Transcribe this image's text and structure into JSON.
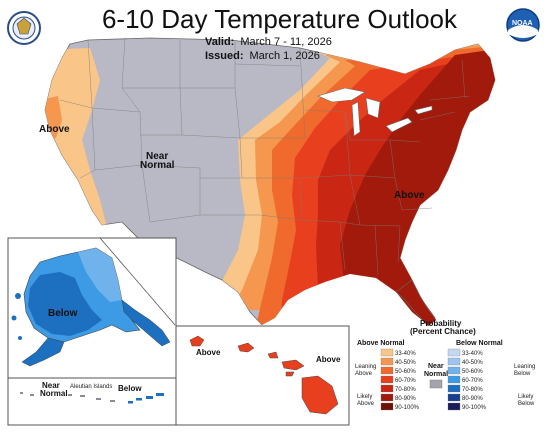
{
  "header": {
    "title": "6-10 Day Temperature Outlook",
    "valid_label": "Valid:",
    "valid_value": "March 7 - 11, 2026",
    "issued_label": "Issued:",
    "issued_value": "March 1, 2026"
  },
  "logos": {
    "left": "commerce-seal-icon",
    "right": "noaa-logo-icon"
  },
  "map_labels": {
    "west_above": "Above",
    "near_normal_line1": "Near",
    "near_normal_line2": "Normal",
    "east_above": "Above",
    "alaska_below": "Below",
    "aleutian_near_line1": "Near",
    "aleutian_near_line2": "Normal",
    "aleutian_islands": "Aleutian Islands",
    "aleutian_below": "Below",
    "hawaii_above_west": "Above",
    "hawaii_above_east": "Above"
  },
  "legend": {
    "title_line1": "Probability",
    "title_line2": "(Percent Chance)",
    "above_heading": "Above Normal",
    "below_heading": "Below Normal",
    "near_line1": "Near",
    "near_line2": "Normal",
    "leaning_above_line1": "Leaning",
    "leaning_above_line2": "Above",
    "likely_above_line1": "Likely",
    "likely_above_line2": "Above",
    "leaning_below_line1": "Leaning",
    "leaning_below_line2": "Below",
    "likely_below_line1": "Likely",
    "likely_below_line2": "Below",
    "above_bins": [
      {
        "label": "33-40%",
        "color": "#f9c589"
      },
      {
        "label": "40-50%",
        "color": "#f5974e"
      },
      {
        "label": "50-60%",
        "color": "#f06a2d"
      },
      {
        "label": "60-70%",
        "color": "#e8401e"
      },
      {
        "label": "70-80%",
        "color": "#c92713"
      },
      {
        "label": "80-90%",
        "color": "#a11a0c"
      },
      {
        "label": "90-100%",
        "color": "#6f0f06"
      }
    ],
    "below_bins": [
      {
        "label": "33-40%",
        "color": "#c5d8f3"
      },
      {
        "label": "40-50%",
        "color": "#9ec5f0"
      },
      {
        "label": "50-60%",
        "color": "#6fb2ec"
      },
      {
        "label": "60-70%",
        "color": "#3d9be6"
      },
      {
        "label": "70-80%",
        "color": "#1d6fc0"
      },
      {
        "label": "80-90%",
        "color": "#173f8f"
      },
      {
        "label": "90-100%",
        "color": "#1c1c5c"
      }
    ],
    "near_color": "#a3a4ad"
  },
  "colors": {
    "near_normal": "#b8b9c4",
    "above_33_40": "#f9c589",
    "above_40_50": "#f5974e",
    "above_50_60": "#f06a2d",
    "above_60_70": "#e8401e",
    "above_70_80": "#c92713",
    "above_80_90": "#a11a0c",
    "below_50_60": "#6fb2ec",
    "below_60_70": "#3d9be6",
    "below_70_80": "#1d6fc0",
    "below_80_90": "#173f8f"
  }
}
